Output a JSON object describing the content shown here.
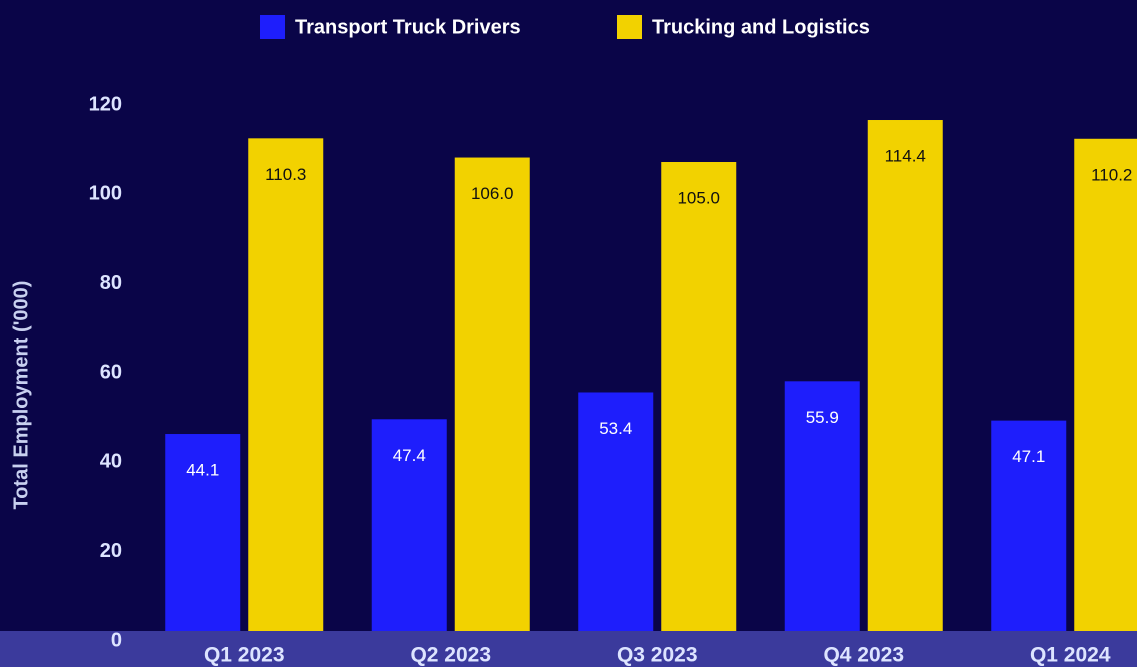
{
  "chart_data": {
    "type": "bar",
    "y_label": "Total Employment ('000)",
    "categories": [
      "Q1 2023",
      "Q2 2023",
      "Q3 2023",
      "Q4 2023",
      "Q1 2024"
    ],
    "series": [
      {
        "name": "Transport Truck Drivers",
        "color": "#1e1efc",
        "values": [
          44.1,
          47.4,
          53.4,
          55.9,
          47.1
        ]
      },
      {
        "name": "Trucking and Logistics",
        "color": "#f2d200",
        "values": [
          110.3,
          106,
          105,
          114.4,
          110.2
        ],
        "value_labels": [
          "110.3",
          "106.0",
          "105.0",
          "114.4",
          "110.2"
        ]
      }
    ],
    "ylim": [
      0,
      120
    ],
    "yticks": [
      0,
      20,
      40,
      60,
      80,
      100,
      120
    ],
    "grid": false
  }
}
